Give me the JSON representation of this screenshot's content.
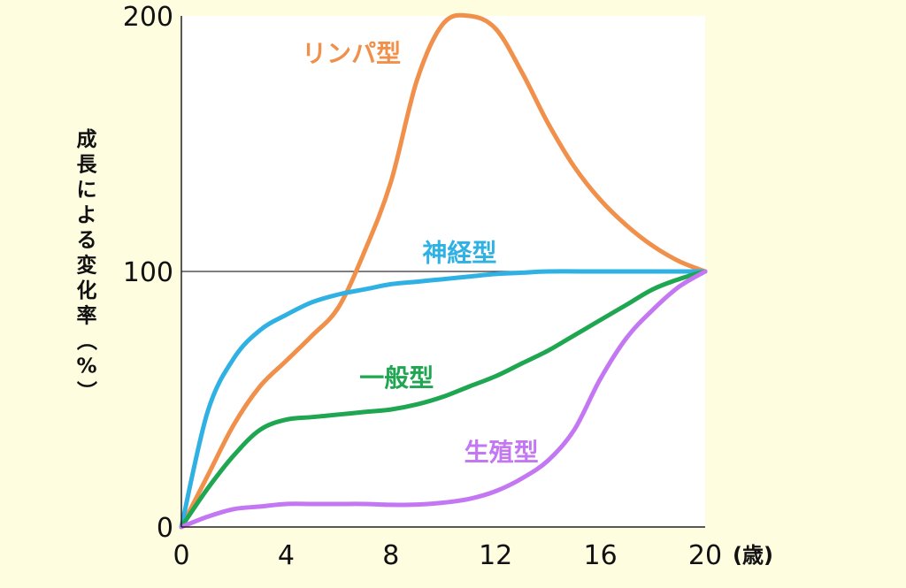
{
  "chart_data": {
    "type": "line",
    "title": "",
    "xlabel": "(歳)",
    "ylabel": "成長による変化率（%）",
    "xlim": [
      0,
      20
    ],
    "ylim": [
      0,
      200
    ],
    "x_ticks": [
      "0",
      "4",
      "8",
      "12",
      "16",
      "20"
    ],
    "y_ticks": [
      "0",
      "100",
      "200"
    ],
    "reference_line_y": 100,
    "grid": false,
    "series": [
      {
        "name": "リンパ型",
        "color": "#f0904a",
        "points": [
          [
            0,
            0
          ],
          [
            1,
            20
          ],
          [
            2,
            40
          ],
          [
            3,
            55
          ],
          [
            4,
            65
          ],
          [
            5,
            75
          ],
          [
            6,
            86
          ],
          [
            7,
            108
          ],
          [
            8,
            135
          ],
          [
            9,
            175
          ],
          [
            10,
            197
          ],
          [
            11,
            200
          ],
          [
            12,
            195
          ],
          [
            13,
            178
          ],
          [
            14,
            158
          ],
          [
            15,
            141
          ],
          [
            16,
            128
          ],
          [
            17,
            118
          ],
          [
            18,
            110
          ],
          [
            19,
            104
          ],
          [
            20,
            100
          ]
        ]
      },
      {
        "name": "神経型",
        "color": "#2fb1e3",
        "points": [
          [
            0,
            0
          ],
          [
            1,
            45
          ],
          [
            2,
            66
          ],
          [
            3,
            77
          ],
          [
            4,
            83
          ],
          [
            5,
            88
          ],
          [
            6,
            91
          ],
          [
            7,
            93
          ],
          [
            8,
            95
          ],
          [
            9,
            96
          ],
          [
            10,
            97
          ],
          [
            11,
            98
          ],
          [
            12,
            99
          ],
          [
            13,
            99.5
          ],
          [
            14,
            100
          ],
          [
            16,
            100
          ],
          [
            18,
            100
          ],
          [
            20,
            100
          ]
        ]
      },
      {
        "name": "一般型",
        "color": "#1fa651",
        "points": [
          [
            0,
            0
          ],
          [
            1,
            15
          ],
          [
            2,
            28
          ],
          [
            3,
            38
          ],
          [
            4,
            42
          ],
          [
            5,
            43
          ],
          [
            6,
            44
          ],
          [
            7,
            45
          ],
          [
            8,
            46
          ],
          [
            9,
            48
          ],
          [
            10,
            51
          ],
          [
            11,
            55
          ],
          [
            12,
            59
          ],
          [
            13,
            64
          ],
          [
            14,
            69
          ],
          [
            15,
            75
          ],
          [
            16,
            81
          ],
          [
            17,
            87
          ],
          [
            18,
            93
          ],
          [
            19,
            97
          ],
          [
            20,
            100
          ]
        ]
      },
      {
        "name": "生殖型",
        "color": "#c477f2",
        "points": [
          [
            0,
            0
          ],
          [
            1,
            4
          ],
          [
            2,
            7
          ],
          [
            3,
            8
          ],
          [
            4,
            9
          ],
          [
            5,
            9
          ],
          [
            6,
            9
          ],
          [
            7,
            9
          ],
          [
            8,
            8.7
          ],
          [
            9,
            8.8
          ],
          [
            10,
            9.5
          ],
          [
            11,
            11
          ],
          [
            12,
            14
          ],
          [
            13,
            19
          ],
          [
            14,
            26
          ],
          [
            15,
            38
          ],
          [
            16,
            58
          ],
          [
            17,
            74
          ],
          [
            18,
            85
          ],
          [
            19,
            94
          ],
          [
            20,
            100
          ]
        ]
      }
    ]
  },
  "colors": {
    "background": "#fffde0",
    "plot_background": "#ffffff",
    "axis": "#222222"
  }
}
